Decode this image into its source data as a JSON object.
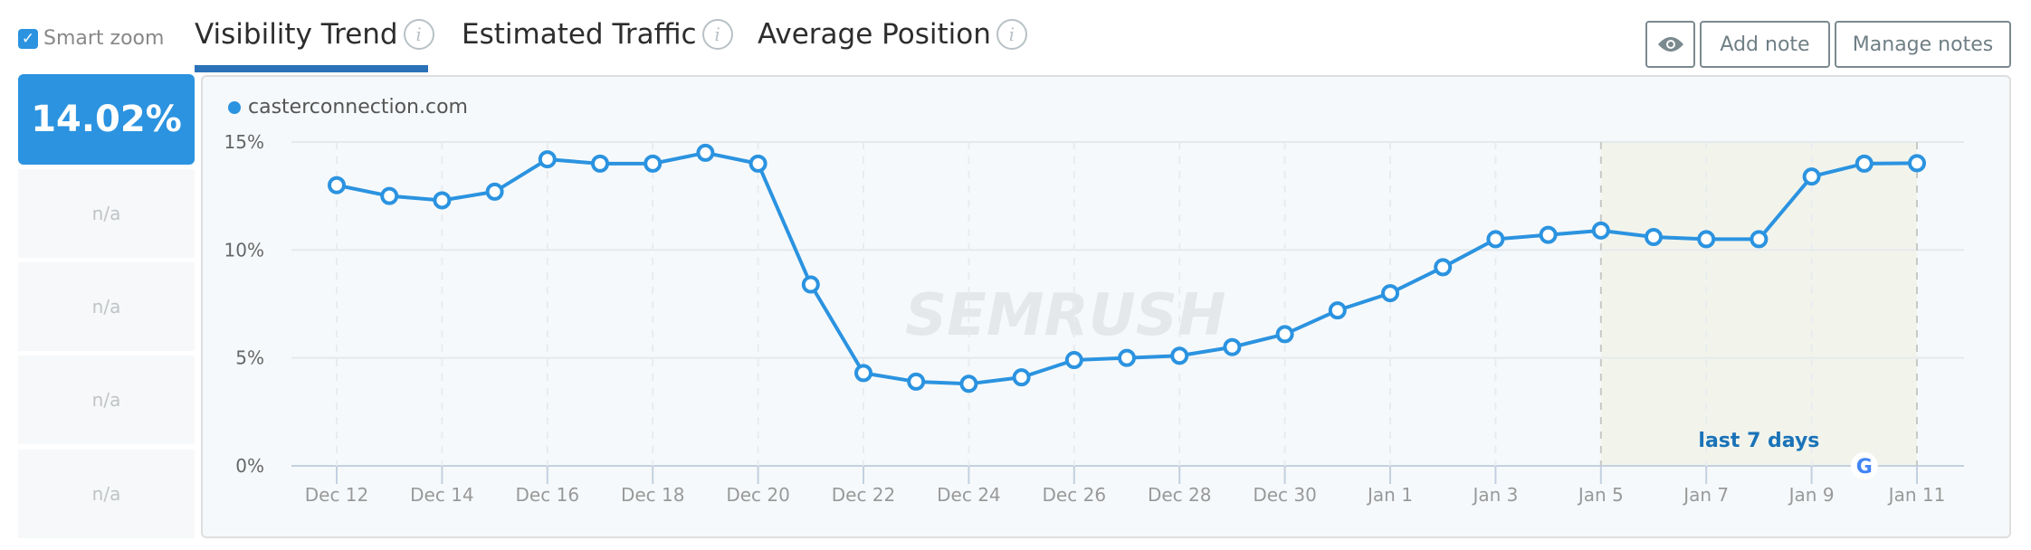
{
  "smart_zoom": {
    "label": "Smart zoom",
    "checked": true
  },
  "tabs": [
    {
      "label": "Visibility Trend",
      "active": true
    },
    {
      "label": "Estimated Traffic"
    },
    {
      "label": "Average Position"
    }
  ],
  "info_glyph": "i",
  "buttons": {
    "eye_icon": "eye-icon",
    "add_note": "Add note",
    "manage_notes": "Manage notes"
  },
  "summary": {
    "value": "14.02%",
    "others": [
      "n/a",
      "n/a",
      "n/a",
      "n/a"
    ]
  },
  "colors": {
    "accent": "#2b93e0",
    "highlight": "#f2f4ec",
    "label_blue": "#1a73b8"
  },
  "watermark": "SEMRUSH",
  "chart_data": {
    "type": "line",
    "legend": "casterconnection.com",
    "ylim": [
      0,
      15
    ],
    "yticks": [
      "0%",
      "5%",
      "10%",
      "15%"
    ],
    "xticks": [
      "Dec 12",
      "Dec 14",
      "Dec 16",
      "Dec 18",
      "Dec 20",
      "Dec 22",
      "Dec 24",
      "Dec 26",
      "Dec 28",
      "Dec 30",
      "Jan 1",
      "Jan 3",
      "Jan 5",
      "Jan 7",
      "Jan 9",
      "Jan 11"
    ],
    "highlight_label": "last 7 days",
    "highlight_range": [
      "Jan 5",
      "Jan 11"
    ],
    "series": [
      {
        "name": "casterconnection.com",
        "values": [
          13.0,
          12.5,
          12.3,
          12.7,
          14.2,
          14.0,
          14.0,
          14.5,
          14.0,
          8.4,
          4.3,
          3.9,
          3.8,
          4.1,
          4.9,
          5.0,
          5.1,
          5.5,
          6.1,
          7.2,
          8.0,
          9.2,
          10.5,
          10.7,
          10.9,
          10.6,
          10.5,
          10.5,
          13.4,
          14.0,
          14.02
        ]
      }
    ]
  }
}
